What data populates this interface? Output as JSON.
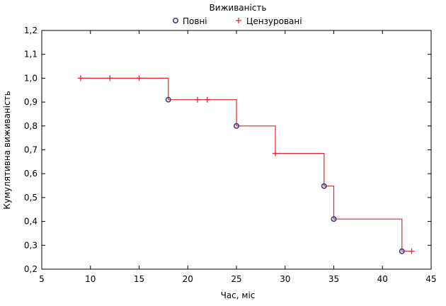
{
  "chart_data": {
    "type": "line",
    "subtype": "survival-step",
    "xlabel": "Час, міс",
    "ylabel": "Кумулятивна виживаність",
    "xlim": [
      5,
      45
    ],
    "ylim": [
      0.2,
      1.2
    ],
    "xticks": [
      5,
      10,
      15,
      20,
      25,
      30,
      35,
      40,
      45
    ],
    "yticks": [
      "0,2",
      "0,3",
      "0,4",
      "0,5",
      "0,6",
      "0,7",
      "0,8",
      "0,9",
      "1,0",
      "1,1",
      "1,2"
    ],
    "grid": false,
    "legend": {
      "title": "Виживаність",
      "placement": "top-center",
      "entries": [
        {
          "label": "Повні",
          "marker": "circle"
        },
        {
          "label": "Цензуровані",
          "marker": "plus"
        }
      ]
    },
    "series": [
      {
        "name": "Крива виживаності",
        "kind": "step",
        "x": [
          9,
          18,
          18,
          25,
          25,
          29,
          29,
          34,
          34,
          35,
          35,
          42,
          42,
          43
        ],
        "y": [
          1.0,
          1.0,
          0.91,
          0.91,
          0.8,
          0.8,
          0.685,
          0.685,
          0.548,
          0.548,
          0.41,
          0.41,
          0.275,
          0.275
        ]
      },
      {
        "name": "Повні",
        "kind": "points",
        "marker": "circle",
        "x": [
          18,
          25,
          34,
          35,
          42
        ],
        "y": [
          0.91,
          0.8,
          0.548,
          0.41,
          0.275
        ]
      },
      {
        "name": "Цензуровані",
        "kind": "points",
        "marker": "plus",
        "x": [
          9,
          12,
          15,
          21,
          22,
          29,
          43
        ],
        "y": [
          1.0,
          1.0,
          1.0,
          0.91,
          0.91,
          0.685,
          0.275
        ]
      }
    ],
    "colors": {
      "step_line": "#e8242a",
      "complete_marker": "#3a3a8c",
      "censored_marker": "#e8242a",
      "axis": "#000000"
    }
  }
}
